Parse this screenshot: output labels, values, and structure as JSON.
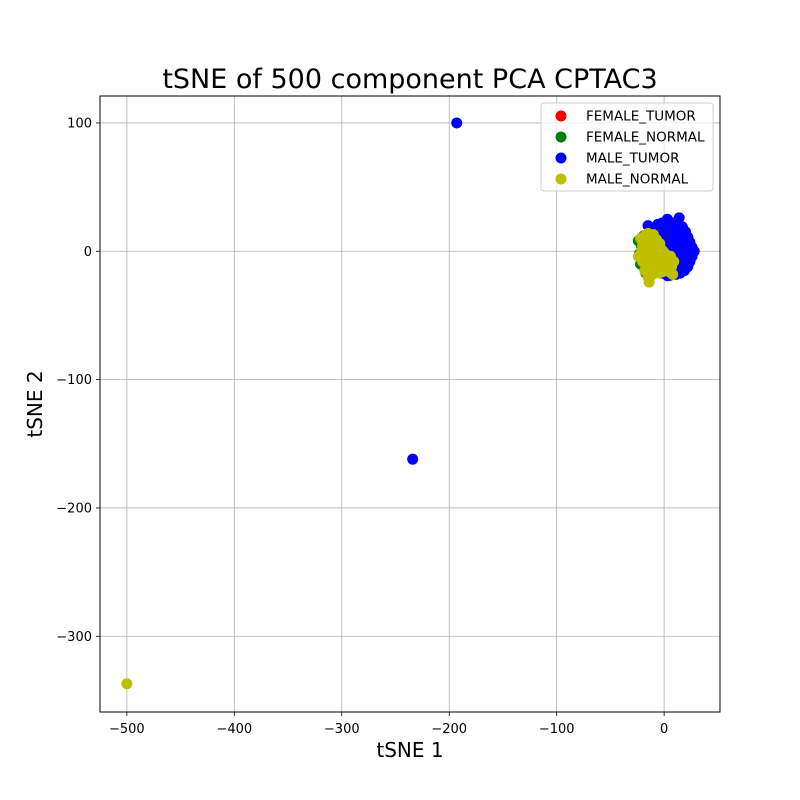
{
  "chart_data": {
    "type": "scatter",
    "title": "tSNE of 500 component PCA CPTAC3",
    "xlabel": "tSNE 1",
    "ylabel": "tSNE 2",
    "xlim": [
      -525,
      52
    ],
    "ylim": [
      -359,
      121
    ],
    "xticks": [
      -500,
      -400,
      -300,
      -200,
      -100,
      0
    ],
    "yticks": [
      100,
      0,
      -100,
      -200,
      -300
    ],
    "xtick_labels": [
      "−500",
      "−400",
      "−300",
      "−200",
      "−100",
      "0"
    ],
    "ytick_labels": [
      "100",
      "0",
      "−100",
      "−200",
      "−300"
    ],
    "grid": true,
    "legend_position": "top-right",
    "series": [
      {
        "name": "FEMALE_TUMOR",
        "color": "#ff0000",
        "points": []
      },
      {
        "name": "FEMALE_NORMAL",
        "color": "#008000",
        "points": [
          [
            -24,
            8
          ],
          [
            -23,
            -2
          ],
          [
            -22,
            -10
          ],
          [
            -21,
            4
          ],
          [
            -20,
            -6
          ],
          [
            -19,
            12
          ],
          [
            -18,
            -14
          ],
          [
            -17,
            -17
          ],
          [
            -16,
            0
          ],
          [
            -15,
            9
          ],
          [
            -14,
            -12
          ],
          [
            -12,
            5
          ],
          [
            -11,
            -18
          ],
          [
            -9,
            -7
          ],
          [
            -7,
            3
          ],
          [
            -5,
            -15
          ],
          [
            -3,
            10
          ],
          [
            -1,
            -5
          ],
          [
            2,
            -11
          ],
          [
            5,
            -19
          ],
          [
            7,
            1
          ]
        ]
      },
      {
        "name": "MALE_TUMOR",
        "color": "#0000ff",
        "points": [
          [
            -193,
            100
          ],
          [
            -234,
            -162
          ],
          [
            -15,
            20
          ],
          [
            -10,
            18
          ],
          [
            -6,
            21
          ],
          [
            -2,
            22
          ],
          [
            3,
            25
          ],
          [
            9,
            22
          ],
          [
            14,
            26
          ],
          [
            17,
            19
          ],
          [
            20,
            15
          ],
          [
            22,
            11
          ],
          [
            24,
            7
          ],
          [
            26,
            3
          ],
          [
            28,
            0
          ],
          [
            26,
            -4
          ],
          [
            24,
            -8
          ],
          [
            22,
            -12
          ],
          [
            19,
            -15
          ],
          [
            15,
            -17
          ],
          [
            11,
            -18
          ],
          [
            7,
            -16
          ],
          [
            3,
            -19
          ],
          [
            -2,
            -17
          ],
          [
            -6,
            -16
          ],
          [
            -10,
            -14
          ],
          [
            -13,
            -11
          ],
          [
            0,
            15
          ],
          [
            5,
            12
          ],
          [
            10,
            10
          ],
          [
            15,
            8
          ],
          [
            20,
            4
          ],
          [
            18,
            -2
          ],
          [
            14,
            -6
          ],
          [
            10,
            -10
          ],
          [
            6,
            -8
          ],
          [
            2,
            -4
          ],
          [
            -3,
            0
          ],
          [
            -7,
            6
          ],
          [
            4,
            3
          ],
          [
            8,
            1
          ],
          [
            12,
            3
          ],
          [
            16,
            0
          ],
          [
            21,
            -9
          ],
          [
            -1,
            8
          ],
          [
            6,
            17
          ],
          [
            12,
            15
          ],
          [
            18,
            12
          ],
          [
            -5,
            12
          ],
          [
            1,
            -12
          ],
          [
            9,
            -14
          ],
          [
            13,
            -13
          ],
          [
            23,
            2
          ],
          [
            25,
            -1
          ],
          [
            -8,
            -5
          ],
          [
            3,
            20
          ],
          [
            11,
            -4
          ],
          [
            19,
            7
          ],
          [
            -12,
            16
          ],
          [
            7,
            7
          ]
        ]
      },
      {
        "name": "MALE_NORMAL",
        "color": "#bfbf00",
        "points": [
          [
            -500,
            -337
          ],
          [
            -24,
            -4
          ],
          [
            -22,
            10
          ],
          [
            -21,
            0
          ],
          [
            -20,
            -8
          ],
          [
            -19,
            6
          ],
          [
            -18,
            12
          ],
          [
            -17,
            -3
          ],
          [
            -16,
            3
          ],
          [
            -16,
            -12
          ],
          [
            -15,
            14
          ],
          [
            -14,
            8
          ],
          [
            -14,
            -6
          ],
          [
            -13,
            1
          ],
          [
            -12,
            -10
          ],
          [
            -12,
            11
          ],
          [
            -11,
            5
          ],
          [
            -11,
            -2
          ],
          [
            -10,
            -14
          ],
          [
            -10,
            13
          ],
          [
            -9,
            7
          ],
          [
            -9,
            -9
          ],
          [
            -8,
            2
          ],
          [
            -8,
            -16
          ],
          [
            -7,
            9
          ],
          [
            -7,
            -4
          ],
          [
            -6,
            -11
          ],
          [
            -6,
            4
          ],
          [
            -5,
            -1
          ],
          [
            -5,
            -17
          ],
          [
            -4,
            6
          ],
          [
            -4,
            -8
          ],
          [
            -3,
            -13
          ],
          [
            -3,
            2
          ],
          [
            -2,
            -4
          ],
          [
            -2,
            -16
          ],
          [
            -1,
            0
          ],
          [
            0,
            -10
          ],
          [
            0,
            -7
          ],
          [
            1,
            -2
          ],
          [
            1,
            -14
          ],
          [
            2,
            -6
          ],
          [
            3,
            -12
          ],
          [
            4,
            -9
          ],
          [
            5,
            -16
          ],
          [
            6,
            -4
          ],
          [
            7,
            -12
          ],
          [
            8,
            -18
          ],
          [
            9,
            -8
          ],
          [
            -14,
            -24
          ],
          [
            -12,
            -19
          ],
          [
            -18,
            -15
          ],
          [
            -20,
            4
          ],
          [
            -13,
            -14
          ],
          [
            -15,
            -20
          ]
        ]
      }
    ]
  }
}
